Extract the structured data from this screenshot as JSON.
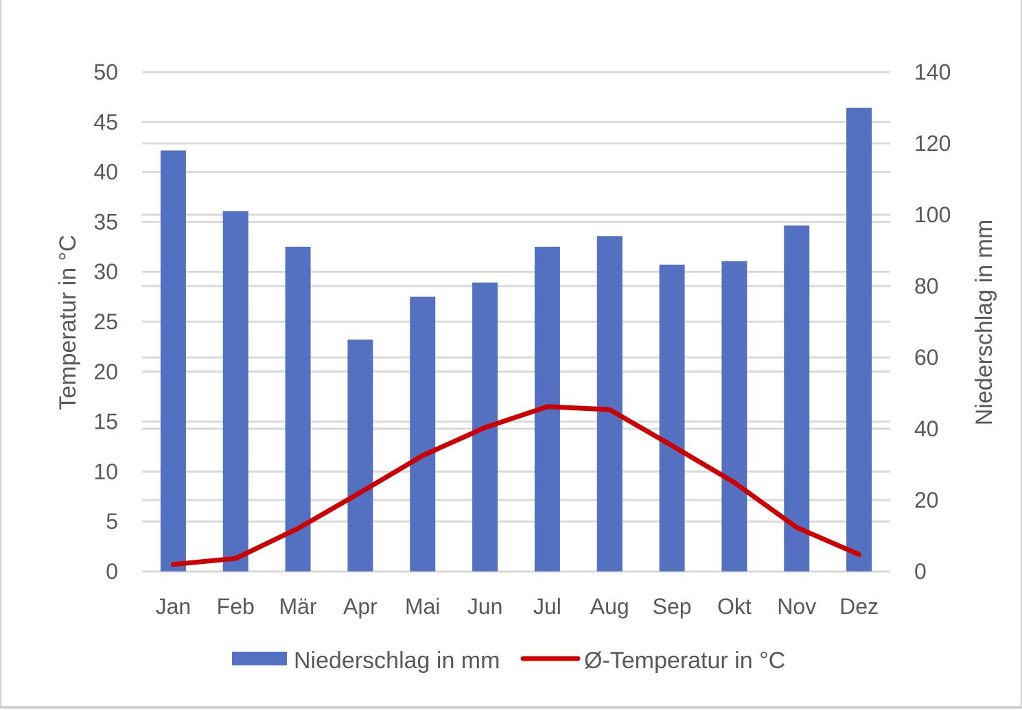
{
  "chart_data": {
    "type": "bar+line",
    "title": "",
    "categories": [
      "Jan",
      "Feb",
      "Mär",
      "Apr",
      "Mai",
      "Jun",
      "Jul",
      "Aug",
      "Sep",
      "Okt",
      "Nov",
      "Dez"
    ],
    "series": [
      {
        "name": "Niederschlag in mm",
        "type": "bar",
        "axis": "right",
        "color": "#5470c0",
        "values": [
          118,
          101,
          91,
          65,
          77,
          81,
          91,
          94,
          86,
          87,
          97,
          130
        ]
      },
      {
        "name": "Ø-Temperatur in °C",
        "type": "line",
        "axis": "left",
        "color": "#cc0000",
        "values": [
          0.7,
          1.3,
          4.3,
          7.9,
          11.6,
          14.4,
          16.5,
          16.2,
          12.6,
          8.9,
          4.4,
          1.7
        ]
      }
    ],
    "y_left": {
      "label": "Temperatur in °C",
      "min": 0,
      "max": 50,
      "ticks": [
        "0",
        "5",
        "10",
        "15",
        "20",
        "25",
        "30",
        "35",
        "40",
        "45",
        "50"
      ]
    },
    "y_right": {
      "label": "Niederschlag in mm",
      "min": 0,
      "max": 140,
      "ticks": [
        "0",
        "20",
        "40",
        "60",
        "80",
        "100",
        "120",
        "140"
      ]
    },
    "grid": true,
    "legend": "bottom"
  }
}
